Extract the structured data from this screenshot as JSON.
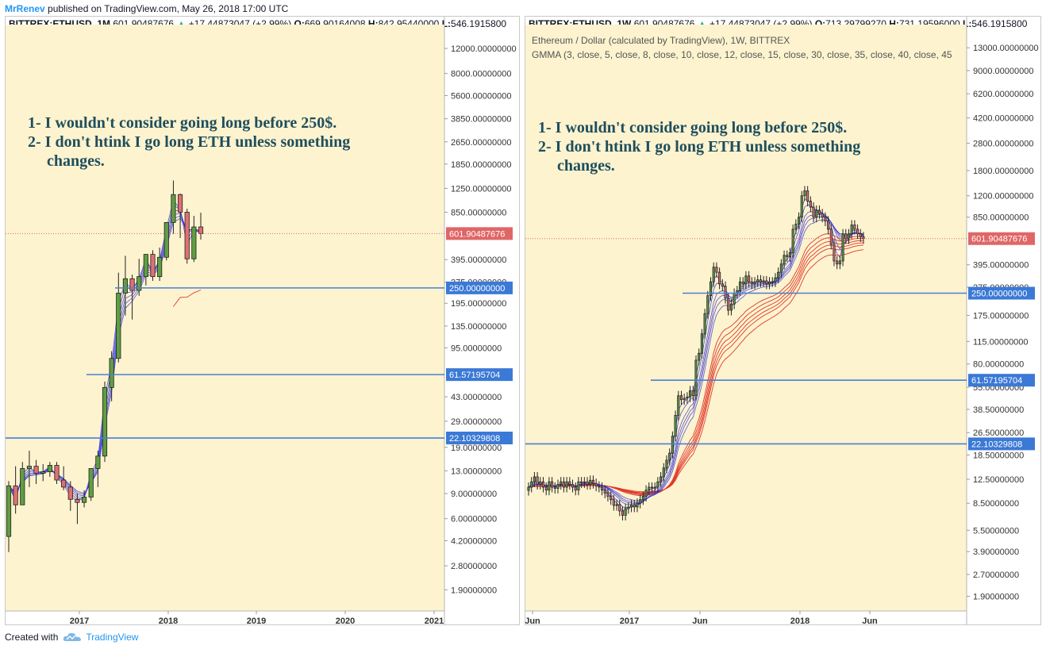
{
  "header": {
    "author": "MrRenev",
    "published": "published on TradingView.com, May 26, 2018 17:00 UTC"
  },
  "footer": {
    "created_with": "Created with",
    "brand": "TradingView"
  },
  "colors": {
    "paper": "#fdf3cf",
    "bull": "#5f9e42",
    "bear": "#e07070",
    "blue_line": "#4a7fd4",
    "label_blue": "#3b79d6",
    "last_price": "#e06666"
  },
  "chart_data": [
    {
      "type": "candlestick",
      "symbol": "BITTREX:ETHUSD, 1M",
      "last": "601.90487676",
      "change": "+17.44873047 (+2.99%)",
      "open_label": "O:",
      "open": "669.90164008",
      "high_label": "H:",
      "high": "842.95440000",
      "low_label": "L:",
      "low": "546.1915800",
      "x_ticks": [
        "2017",
        "2018",
        "2019",
        "2020",
        "2021"
      ],
      "y_ticks": [
        "12000.00000000",
        "8000.00000000",
        "5600.00000000",
        "3850.00000000",
        "2650.00000000",
        "1850.00000000",
        "1250.00000000",
        "850.00000000",
        "395.00000000",
        "275.00000000",
        "195.00000000",
        "135.00000000",
        "95.00000000",
        "43.00000000",
        "29.00000000",
        "19.00000000",
        "13.00000000",
        "9.00000000",
        "6.00000000",
        "4.20000000",
        "2.80000000",
        "1.90000000"
      ],
      "y_tick_values": [
        12000,
        8000,
        5600,
        3850,
        2650,
        1850,
        1250,
        850,
        395,
        275,
        195,
        135,
        95,
        43,
        29,
        19,
        13,
        9,
        6,
        4.2,
        2.8,
        1.9
      ],
      "ylim": [
        1.35,
        14000
      ],
      "y_scale": "log",
      "horizontal_levels": [
        {
          "value": 250,
          "label": "250.00000000"
        },
        {
          "value": 61.57195704,
          "label": "61.57195704"
        },
        {
          "value": 22.10329808,
          "label": "22.10329808"
        }
      ],
      "last_price_label": "601.90487676",
      "annotation": [
        "1- I wouldn't consider going long before 250$.",
        "2- I don't htink I go long ETH unless something",
        "changes."
      ],
      "candles_ohlc": [
        [
          4.5,
          11,
          3.5,
          10.2
        ],
        [
          10.2,
          14,
          6.5,
          7.5
        ],
        [
          7.5,
          15,
          9,
          13.5
        ],
        [
          13.5,
          18,
          10,
          14
        ],
        [
          14,
          15.5,
          10.5,
          12.5
        ],
        [
          12.5,
          14.5,
          11,
          12.8
        ],
        [
          12.8,
          15,
          11.8,
          14.2
        ],
        [
          14.2,
          15,
          10.5,
          11.2
        ],
        [
          11.2,
          14,
          9.5,
          10
        ],
        [
          10,
          11,
          6.8,
          8.2
        ],
        [
          8.2,
          9,
          5.5,
          7.8
        ],
        [
          7.8,
          9.5,
          7.2,
          8.5
        ],
        [
          8.5,
          13,
          8,
          13.5
        ],
        [
          13.5,
          18,
          10,
          16.5
        ],
        [
          16.5,
          55,
          15,
          50
        ],
        [
          50,
          90,
          40,
          80
        ],
        [
          80,
          320,
          75,
          230
        ],
        [
          230,
          420,
          160,
          290
        ],
        [
          290,
          310,
          150,
          240
        ],
        [
          240,
          400,
          220,
          300
        ],
        [
          300,
          420,
          260,
          430
        ],
        [
          430,
          460,
          280,
          300
        ],
        [
          300,
          480,
          280,
          410
        ],
        [
          410,
          700,
          390,
          720
        ],
        [
          720,
          1420,
          600,
          1130
        ],
        [
          1130,
          1150,
          560,
          850
        ],
        [
          850,
          900,
          370,
          400
        ],
        [
          400,
          800,
          380,
          670
        ],
        [
          670,
          843,
          546,
          602
        ]
      ],
      "ma_fast_blue": 6,
      "ma_slow_red": 1
    },
    {
      "type": "candlestick",
      "symbol": "BITTREX:ETHUSD, 1W",
      "last": "601.90487676",
      "change": "+17.44873047 (+2.99%)",
      "open_label": "O:",
      "open": "713.29799270",
      "high_label": "H:",
      "high": "731.19596000",
      "low_label": "L:",
      "low": "546.1915800",
      "legend_title": "Ethereum / Dollar (calculated by TradingView), 1W, BITTREX",
      "legend_indicator": "GMMA (3, close, 5, close, 8, close, 10, close, 12, close, 15, close, 30, close, 35, close, 40, close, 45",
      "x_ticks": [
        "Jun",
        "2017",
        "Jun",
        "2018",
        "Jun"
      ],
      "y_ticks": [
        "13000.00000000",
        "9000.00000000",
        "6200.00000000",
        "4200.00000000",
        "2800.00000000",
        "1800.00000000",
        "1200.00000000",
        "850.00000000",
        "395.00000000",
        "275.00000000",
        "175.00000000",
        "115.00000000",
        "80.00000000",
        "55.00000000",
        "38.50000000",
        "26.50000000",
        "18.50000000",
        "12.50000000",
        "8.50000000",
        "5.50000000",
        "3.90000000",
        "2.70000000",
        "1.90000000"
      ],
      "y_tick_values": [
        13000,
        9000,
        6200,
        4200,
        2800,
        1800,
        1200,
        850,
        395,
        275,
        175,
        115,
        80,
        55,
        38.5,
        26.5,
        18.5,
        12.5,
        8.5,
        5.5,
        3.9,
        2.7,
        1.9
      ],
      "ylim": [
        1.5,
        15000
      ],
      "y_scale": "log",
      "horizontal_levels": [
        {
          "value": 250,
          "label": "250.00000000"
        },
        {
          "value": 61.57195704,
          "label": "61.57195704"
        },
        {
          "value": 22.10329808,
          "label": "22.10329808"
        }
      ],
      "last_price_label": "601.90487676",
      "annotation": [
        "1- I wouldn't consider going long before 250$.",
        "2- I don't htink I go long ETH unless something",
        "changes."
      ],
      "close_series": [
        11,
        12,
        13,
        11.5,
        12,
        11,
        10.5,
        12,
        11,
        10.8,
        11.5,
        12,
        11,
        12,
        11.5,
        11,
        10.5,
        12,
        11.8,
        12,
        11.5,
        12.3,
        11.7,
        11.2,
        11,
        10.5,
        10,
        9.5,
        9,
        8.2,
        8.3,
        7.5,
        7,
        7.8,
        8,
        8.3,
        8,
        8.5,
        9,
        9.5,
        10.5,
        11,
        11,
        11,
        12,
        13,
        15,
        17,
        19,
        25,
        35,
        48,
        45,
        46,
        47,
        52,
        48,
        85,
        95,
        130,
        180,
        240,
        300,
        380,
        350,
        290,
        280,
        230,
        190,
        210,
        250,
        260,
        300,
        290,
        330,
        300,
        290,
        300,
        310,
        300,
        305,
        290,
        300,
        300,
        320,
        350,
        400,
        460,
        450,
        480,
        700,
        760,
        850,
        1200,
        1300,
        1100,
        1000,
        850,
        950,
        900,
        850,
        800,
        700,
        550,
        420,
        400,
        420,
        650,
        600,
        650,
        750,
        700,
        650,
        620,
        602
      ],
      "ma_fast_blue": 6,
      "ma_slow_red": 6
    }
  ]
}
